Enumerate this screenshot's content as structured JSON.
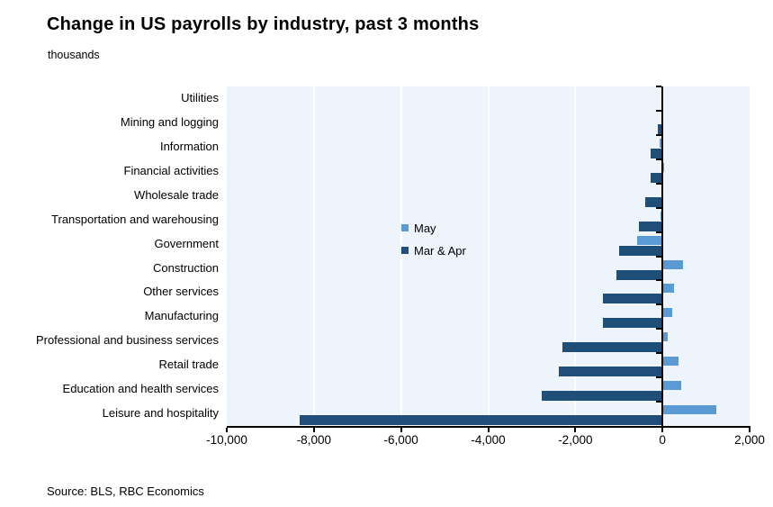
{
  "header": {
    "title": "Change in US payrolls by industry, past 3 months",
    "subtitle": "thousands"
  },
  "source_note": "Source: BLS, RBC Economics",
  "legend": {
    "items": [
      {
        "label": "May",
        "color": "#5B9BD5"
      },
      {
        "label": "Mar & Apr",
        "color": "#1F4E79"
      }
    ]
  },
  "chart_data": {
    "type": "bar",
    "orientation": "horizontal",
    "title": "Change in US payrolls by industry, past 3 months",
    "units_label": "thousands",
    "categories": [
      "Utilities",
      "Mining and logging",
      "Information",
      "Financial activities",
      "Wholesale trade",
      "Transportation and warehousing",
      "Government",
      "Construction",
      "Other services",
      "Manufacturing",
      "Professional and business services",
      "Retail trade",
      "Education and health services",
      "Leisure and hospitality"
    ],
    "series": [
      {
        "name": "May",
        "color": "#5B9BD5",
        "values": [
          -20,
          -20,
          -70,
          40,
          10,
          -40,
          -580,
          465,
          270,
          225,
          125,
          370,
          425,
          1245
        ]
      },
      {
        "name": "Mar & Apr",
        "color": "#1F4E79",
        "values": [
          -10,
          -110,
          -280,
          -275,
          -390,
          -545,
          -990,
          -1060,
          -1365,
          -1365,
          -2290,
          -2380,
          -2770,
          -8320
        ]
      }
    ],
    "xlim": [
      -10000,
      2000
    ],
    "x_ticks": [
      -10000,
      -8000,
      -6000,
      -4000,
      -2000,
      0,
      2000
    ],
    "x_tick_labels": [
      "-10,000",
      "-8,000",
      "-6,000",
      "-4,000",
      "-2,000",
      "0",
      "2,000"
    ],
    "gridline_ticks": [
      -8000,
      -6000,
      -4000,
      -2000
    ],
    "grid": true,
    "legend_position": "inside-left",
    "plot_background": "#EDF4FB"
  }
}
